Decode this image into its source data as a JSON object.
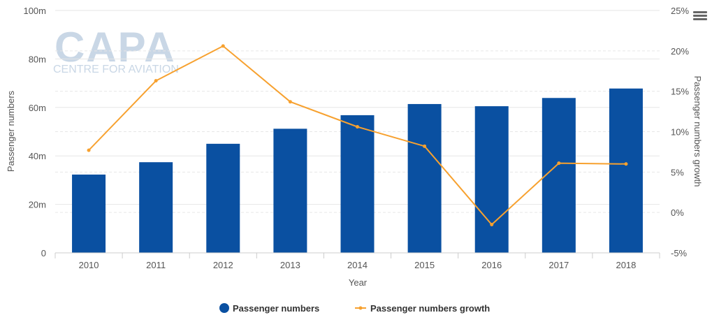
{
  "chart_data": {
    "type": "bar",
    "categories": [
      "2010",
      "2011",
      "2012",
      "2013",
      "2014",
      "2015",
      "2016",
      "2017",
      "2018"
    ],
    "series": [
      {
        "name": "Passenger numbers",
        "type": "bar",
        "axis": "left",
        "color": "#0a50a1",
        "values": [
          32.3,
          37.4,
          45.0,
          51.2,
          56.8,
          61.4,
          60.5,
          63.9,
          67.8
        ]
      },
      {
        "name": "Passenger numbers growth",
        "type": "line",
        "axis": "right",
        "color": "#f7a12f",
        "values": [
          7.7,
          16.3,
          20.6,
          13.7,
          10.6,
          8.2,
          -1.5,
          6.1,
          6.0
        ]
      }
    ],
    "xlabel": "Year",
    "ylabel": "Passenger numbers",
    "y2label": "Passenger numbers growth",
    "ylim": [
      0,
      100
    ],
    "y2lim": [
      -5,
      25
    ],
    "yticks": [
      "0",
      "20m",
      "40m",
      "60m",
      "80m",
      "100m"
    ],
    "y2ticks": [
      "-5%",
      "0%",
      "5%",
      "10%",
      "15%",
      "20%",
      "25%"
    ],
    "grid": true,
    "legend_position": "bottom-center"
  },
  "watermark": {
    "main": "CAPA",
    "sub": "CENTRE FOR AVIATION"
  },
  "menu_icon": "hamburger-menu-icon"
}
